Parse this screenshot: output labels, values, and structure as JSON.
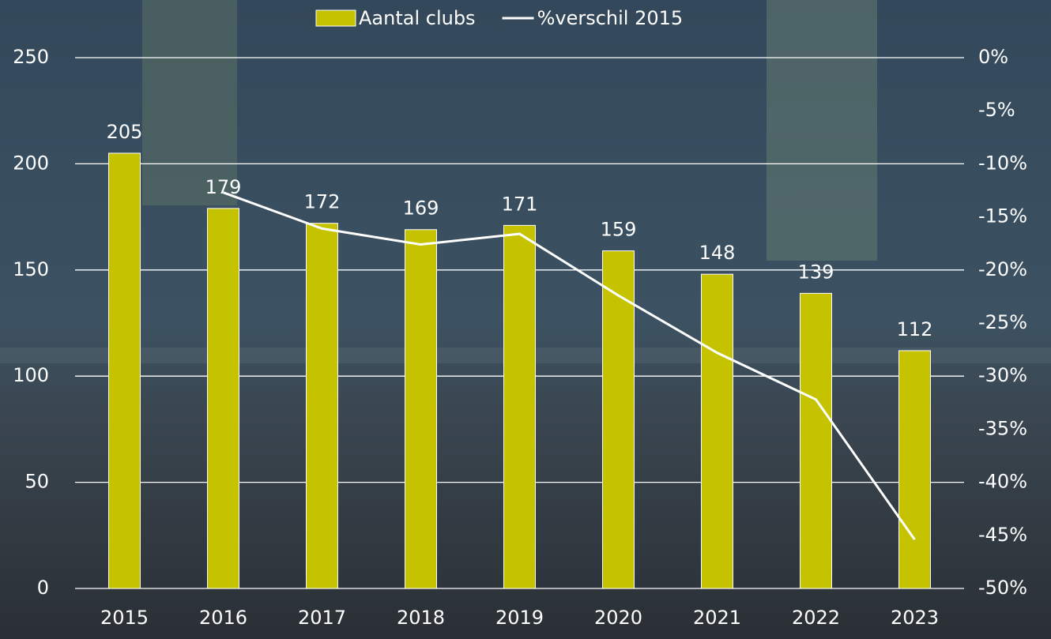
{
  "chart_data": {
    "type": "bar",
    "categories": [
      "2015",
      "2016",
      "2017",
      "2018",
      "2019",
      "2020",
      "2021",
      "2022",
      "2023"
    ],
    "series": [
      {
        "name": "Aantal clubs",
        "color": "#c5c200",
        "type": "bar",
        "values": [
          205,
          179,
          172,
          169,
          171,
          159,
          148,
          139,
          112
        ]
      },
      {
        "name": "%verschil 2015",
        "color": "#ffffff",
        "type": "line",
        "axis": "y2",
        "values": [
          null,
          -12.7,
          -16.1,
          -17.6,
          -16.6,
          -22.4,
          -27.8,
          -32.2,
          -45.4
        ]
      }
    ],
    "ylim": [
      0,
      250
    ],
    "yticks": [
      0,
      50,
      100,
      150,
      200,
      250
    ],
    "y2lim": [
      -50,
      0
    ],
    "y2ticks": [
      {
        "value": 0,
        "label": "0%"
      },
      {
        "value": -5,
        "label": "-5%"
      },
      {
        "value": -10,
        "label": "-10%"
      },
      {
        "value": -15,
        "label": "-15%"
      },
      {
        "value": -20,
        "label": "-20%"
      },
      {
        "value": -25,
        "label": "-25%"
      },
      {
        "value": -30,
        "label": "-30%"
      },
      {
        "value": -35,
        "label": "-35%"
      },
      {
        "value": -40,
        "label": "-40%"
      },
      {
        "value": -45,
        "label": "-45%"
      },
      {
        "value": -50,
        "label": "-50%"
      }
    ],
    "grid": true,
    "legend": "top"
  }
}
